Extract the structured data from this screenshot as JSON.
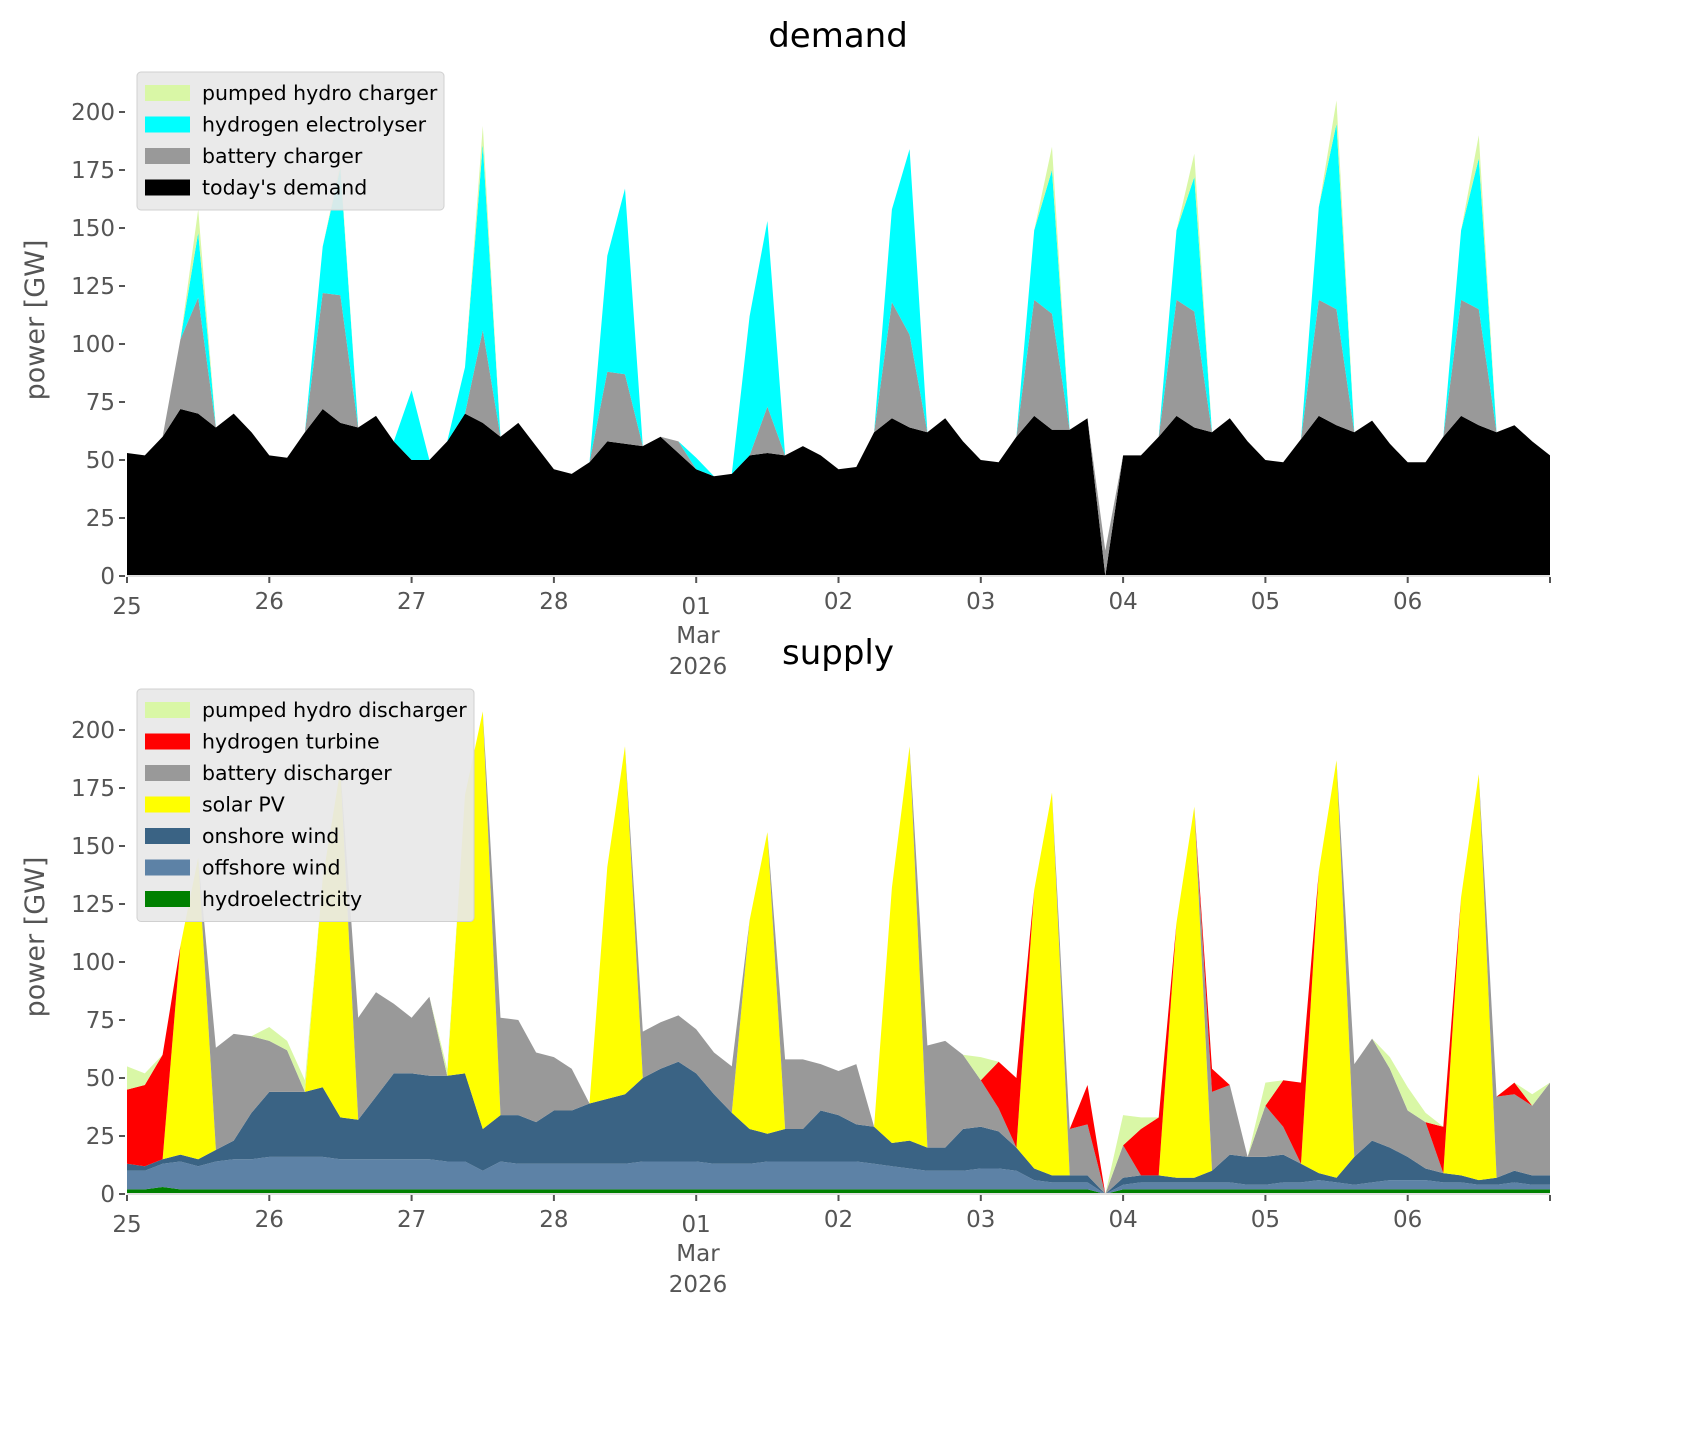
{
  "chart_data": [
    {
      "type": "area",
      "stacked": true,
      "title": "demand",
      "ylabel": "power [GW]",
      "xlabel": "",
      "ylim": [
        0,
        210
      ],
      "xlim": [
        "2026-02-25",
        "2026-03-07"
      ],
      "yticks": [
        0,
        25,
        50,
        75,
        100,
        125,
        150,
        175,
        200
      ],
      "xticks": [
        "25",
        "26",
        "27",
        "28",
        "01",
        "02",
        "03",
        "04",
        "05",
        "06"
      ],
      "xtick_sublabel": {
        "tick": "01",
        "month": "Mar",
        "year": "2026"
      },
      "grid": false,
      "legend": "top-left",
      "step_hours": 3,
      "x": [
        "02-25 00:00",
        "02-25 03:00",
        "02-25 06:00",
        "02-25 09:00",
        "02-25 12:00",
        "02-25 15:00",
        "02-25 18:00",
        "02-25 21:00",
        "02-26 00:00",
        "02-26 03:00",
        "02-26 06:00",
        "02-26 09:00",
        "02-26 12:00",
        "02-26 15:00",
        "02-26 18:00",
        "02-26 21:00",
        "02-27 00:00",
        "02-27 03:00",
        "02-27 06:00",
        "02-27 09:00",
        "02-27 12:00",
        "02-27 15:00",
        "02-27 18:00",
        "02-27 21:00",
        "02-28 00:00",
        "02-28 03:00",
        "02-28 06:00",
        "02-28 09:00",
        "02-28 12:00",
        "02-28 15:00",
        "02-28 18:00",
        "02-28 21:00",
        "03-01 00:00",
        "03-01 03:00",
        "03-01 06:00",
        "03-01 09:00",
        "03-01 12:00",
        "03-01 15:00",
        "03-01 18:00",
        "03-01 21:00",
        "03-02 00:00",
        "03-02 03:00",
        "03-02 06:00",
        "03-02 09:00",
        "03-02 12:00",
        "03-02 15:00",
        "03-02 18:00",
        "03-02 21:00",
        "03-03 00:00",
        "03-03 03:00",
        "03-03 06:00",
        "03-03 09:00",
        "03-03 12:00",
        "03-03 15:00",
        "03-03 18:00",
        "03-03 21:00",
        "03-04 00:00",
        "03-04 03:00",
        "03-04 06:00",
        "03-04 09:00",
        "03-04 12:00",
        "03-04 15:00",
        "03-04 18:00",
        "03-04 21:00",
        "03-05 00:00",
        "03-05 03:00",
        "03-05 06:00",
        "03-05 09:00",
        "03-05 12:00",
        "03-05 15:00",
        "03-05 18:00",
        "03-05 21:00",
        "03-06 00:00",
        "03-06 03:00",
        "03-06 06:00",
        "03-06 09:00",
        "03-06 12:00",
        "03-06 15:00",
        "03-06 18:00",
        "03-06 21:00",
        "03-07 00:00"
      ],
      "series": [
        {
          "name": "today's demand",
          "color": "#000000",
          "values": [
            53,
            52,
            60,
            72,
            70,
            64,
            70,
            62,
            52,
            51,
            62,
            72,
            66,
            64,
            69,
            58,
            50,
            50,
            58,
            70,
            66,
            60,
            66,
            56,
            46,
            44,
            49,
            58,
            57,
            56,
            60,
            53,
            46,
            43,
            44,
            52,
            53,
            52,
            56,
            52,
            46,
            47,
            62,
            68,
            64,
            62,
            68,
            58,
            50,
            49,
            60,
            69,
            63,
            63,
            68,
            0,
            52,
            52,
            60,
            69,
            64,
            62,
            68,
            58,
            50,
            49,
            59,
            69,
            65,
            62,
            67,
            57,
            49,
            49,
            60,
            69,
            65,
            62,
            65,
            58,
            52
          ]
        },
        {
          "name": "battery charger",
          "color": "#999999",
          "values": [
            0,
            0,
            0,
            30,
            50,
            0,
            0,
            0,
            0,
            0,
            0,
            50,
            55,
            0,
            0,
            0,
            0,
            0,
            0,
            0,
            40,
            0,
            0,
            0,
            0,
            0,
            0,
            30,
            30,
            0,
            0,
            5,
            0,
            0,
            0,
            0,
            20,
            0,
            0,
            0,
            0,
            0,
            0,
            50,
            40,
            0,
            0,
            0,
            0,
            0,
            0,
            50,
            50,
            0,
            0,
            11,
            0,
            0,
            0,
            50,
            50,
            0,
            0,
            0,
            0,
            0,
            0,
            50,
            50,
            0,
            0,
            0,
            0,
            0,
            0,
            50,
            50,
            0,
            0,
            0,
            0
          ]
        },
        {
          "name": "hydrogen electrolyser",
          "color": "#00ffff",
          "values": [
            0,
            0,
            0,
            0,
            28,
            0,
            0,
            0,
            0,
            0,
            0,
            20,
            55,
            0,
            0,
            0,
            30,
            0,
            0,
            20,
            80,
            0,
            0,
            0,
            0,
            0,
            0,
            50,
            80,
            0,
            0,
            0,
            5,
            0,
            0,
            60,
            80,
            0,
            0,
            0,
            0,
            0,
            0,
            40,
            80,
            0,
            0,
            0,
            0,
            0,
            0,
            30,
            62,
            0,
            0,
            0,
            0,
            0,
            0,
            30,
            58,
            0,
            0,
            0,
            0,
            0,
            0,
            40,
            80,
            0,
            0,
            0,
            0,
            0,
            0,
            30,
            65,
            0,
            0,
            0,
            0
          ]
        },
        {
          "name": "pumped hydro charger",
          "color": "#d9f7a6",
          "values": [
            0,
            0,
            0,
            0,
            10,
            0,
            0,
            0,
            0,
            0,
            0,
            0,
            2,
            0,
            0,
            0,
            0,
            0,
            0,
            0,
            8,
            0,
            0,
            0,
            0,
            0,
            0,
            0,
            0,
            0,
            0,
            0,
            0,
            0,
            0,
            0,
            0,
            0,
            0,
            0,
            0,
            0,
            0,
            0,
            0,
            0,
            0,
            0,
            0,
            0,
            0,
            0,
            10,
            0,
            0,
            0,
            0,
            0,
            0,
            0,
            10,
            0,
            0,
            0,
            0,
            0,
            0,
            0,
            10,
            0,
            0,
            0,
            0,
            0,
            0,
            0,
            10,
            0,
            0,
            0,
            0
          ]
        }
      ]
    },
    {
      "type": "area",
      "stacked": true,
      "title": "supply",
      "ylabel": "power [GW]",
      "xlabel": "",
      "ylim": [
        0,
        210
      ],
      "xlim": [
        "2026-02-25",
        "2026-03-07"
      ],
      "yticks": [
        0,
        25,
        50,
        75,
        100,
        125,
        150,
        175,
        200
      ],
      "xticks": [
        "25",
        "26",
        "27",
        "28",
        "01",
        "02",
        "03",
        "04",
        "05",
        "06"
      ],
      "xtick_sublabel": {
        "tick": "01",
        "month": "Mar",
        "year": "2026"
      },
      "grid": false,
      "legend": "top-left",
      "step_hours": 3,
      "series": [
        {
          "name": "hydroelectricity",
          "color": "#008000",
          "values": [
            2,
            2,
            3,
            2,
            2,
            2,
            2,
            2,
            2,
            2,
            2,
            2,
            2,
            2,
            2,
            2,
            2,
            2,
            2,
            2,
            2,
            2,
            2,
            2,
            2,
            2,
            2,
            2,
            2,
            2,
            2,
            2,
            2,
            2,
            2,
            2,
            2,
            2,
            2,
            2,
            2,
            2,
            2,
            2,
            2,
            2,
            2,
            2,
            2,
            2,
            2,
            2,
            2,
            2,
            2,
            0,
            2,
            2,
            2,
            2,
            2,
            2,
            2,
            2,
            2,
            2,
            2,
            2,
            2,
            2,
            2,
            2,
            2,
            2,
            2,
            2,
            2,
            2,
            2,
            2,
            2
          ]
        },
        {
          "name": "offshore wind",
          "color": "#5d82a6",
          "values": [
            8,
            8,
            10,
            12,
            10,
            12,
            13,
            13,
            14,
            14,
            14,
            14,
            13,
            13,
            13,
            13,
            13,
            13,
            12,
            12,
            8,
            12,
            11,
            11,
            11,
            11,
            11,
            11,
            11,
            12,
            12,
            12,
            12,
            11,
            11,
            11,
            12,
            12,
            12,
            12,
            12,
            12,
            11,
            10,
            9,
            8,
            8,
            8,
            9,
            9,
            8,
            4,
            3,
            3,
            3,
            -2,
            2,
            3,
            3,
            3,
            3,
            3,
            3,
            2,
            2,
            3,
            3,
            4,
            3,
            2,
            3,
            4,
            4,
            4,
            3,
            3,
            2,
            2,
            3,
            2,
            2
          ]
        },
        {
          "name": "onshore wind",
          "color": "#3a6384",
          "values": [
            3,
            2,
            2,
            3,
            3,
            5,
            8,
            20,
            28,
            28,
            28,
            30,
            18,
            17,
            27,
            37,
            37,
            36,
            37,
            38,
            18,
            20,
            21,
            18,
            23,
            23,
            26,
            28,
            30,
            36,
            40,
            43,
            38,
            30,
            22,
            15,
            12,
            14,
            14,
            22,
            20,
            16,
            16,
            10,
            12,
            10,
            10,
            18,
            18,
            16,
            10,
            5,
            3,
            3,
            3,
            0,
            3,
            3,
            3,
            2,
            2,
            5,
            12,
            12,
            12,
            12,
            8,
            3,
            2,
            12,
            18,
            14,
            10,
            5,
            4,
            3,
            2,
            3,
            5,
            4,
            4
          ]
        },
        {
          "name": "solar PV",
          "color": "#ffff00",
          "values": [
            0,
            0,
            0,
            90,
            130,
            0,
            0,
            0,
            0,
            0,
            0,
            90,
            150,
            0,
            0,
            0,
            0,
            0,
            0,
            120,
            180,
            0,
            0,
            0,
            0,
            0,
            0,
            100,
            150,
            0,
            0,
            0,
            0,
            0,
            0,
            90,
            130,
            0,
            0,
            0,
            0,
            0,
            0,
            110,
            170,
            0,
            0,
            0,
            0,
            0,
            0,
            120,
            165,
            0,
            0,
            0,
            0,
            0,
            0,
            110,
            160,
            0,
            0,
            0,
            0,
            0,
            0,
            130,
            180,
            0,
            0,
            0,
            0,
            0,
            0,
            120,
            175,
            0,
            0,
            0,
            0
          ]
        },
        {
          "name": "battery discharger",
          "color": "#999999",
          "values": [
            0,
            0,
            0,
            0,
            0,
            44,
            46,
            33,
            22,
            18,
            0,
            0,
            0,
            44,
            45,
            30,
            24,
            34,
            0,
            0,
            0,
            42,
            41,
            30,
            23,
            18,
            0,
            0,
            0,
            20,
            20,
            20,
            19,
            18,
            20,
            0,
            0,
            30,
            30,
            20,
            19,
            26,
            0,
            0,
            0,
            44,
            46,
            32,
            20,
            10,
            0,
            0,
            0,
            20,
            22,
            0,
            14,
            0,
            0,
            0,
            0,
            34,
            30,
            0,
            22,
            12,
            0,
            0,
            0,
            40,
            44,
            34,
            20,
            20,
            0,
            0,
            0,
            35,
            33,
            30,
            40
          ]
        },
        {
          "name": "hydrogen turbine",
          "color": "#ff0000",
          "values": [
            32,
            35,
            45,
            0,
            0,
            0,
            0,
            0,
            0,
            0,
            0,
            0,
            0,
            0,
            0,
            0,
            0,
            0,
            0,
            0,
            0,
            0,
            0,
            0,
            0,
            0,
            0,
            0,
            0,
            0,
            0,
            0,
            0,
            0,
            0,
            0,
            0,
            0,
            0,
            0,
            0,
            0,
            0,
            0,
            0,
            0,
            0,
            0,
            0,
            20,
            30,
            0,
            0,
            0,
            17,
            0,
            0,
            20,
            25,
            0,
            0,
            10,
            0,
            0,
            0,
            20,
            35,
            0,
            0,
            0,
            0,
            0,
            0,
            0,
            20,
            0,
            0,
            0,
            5,
            0,
            0
          ]
        },
        {
          "name": "pumped hydro discharger",
          "color": "#d9f7a6",
          "values": [
            10,
            5,
            0,
            0,
            0,
            0,
            0,
            0,
            6,
            4,
            5,
            0,
            0,
            0,
            0,
            0,
            0,
            0,
            3,
            0,
            0,
            0,
            0,
            0,
            0,
            0,
            0,
            0,
            0,
            0,
            0,
            0,
            0,
            0,
            0,
            0,
            0,
            0,
            0,
            0,
            0,
            0,
            0,
            0,
            0,
            0,
            0,
            0,
            10,
            0,
            0,
            0,
            0,
            0,
            0,
            0,
            13,
            5,
            0,
            0,
            0,
            0,
            0,
            0,
            10,
            0,
            0,
            0,
            0,
            0,
            0,
            5,
            10,
            4,
            0,
            0,
            0,
            0,
            0,
            5,
            0
          ]
        }
      ]
    }
  ],
  "legends": {
    "demand": [
      "pumped hydro charger",
      "hydrogen electrolyser",
      "battery charger",
      "today's demand"
    ],
    "supply": [
      "pumped hydro discharger",
      "hydrogen turbine",
      "battery discharger",
      "solar PV",
      "onshore wind",
      "offshore wind",
      "hydroelectricity"
    ]
  }
}
